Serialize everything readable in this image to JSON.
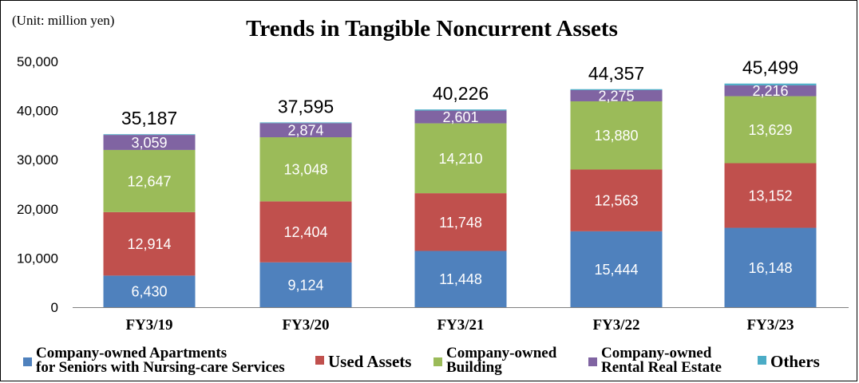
{
  "unit_label": "(Unit: million yen)",
  "chart_data": {
    "type": "bar",
    "stacked": true,
    "title": "Trends in Tangible Noncurrent Assets",
    "categories": [
      "FY3/19",
      "FY3/20",
      "FY3/21",
      "FY3/22",
      "FY3/23"
    ],
    "totals": [
      35187,
      37595,
      40226,
      44357,
      45499
    ],
    "total_labels": [
      "35,187",
      "37,595",
      "40,226",
      "44,357",
      "45,499"
    ],
    "ylim": [
      0,
      50000
    ],
    "yticks": [
      0,
      10000,
      20000,
      30000,
      40000,
      50000
    ],
    "ytick_labels": [
      "0",
      "10,000",
      "20,000",
      "30,000",
      "40,000",
      "50,000"
    ],
    "grid": false,
    "legend_position": "bottom",
    "series": [
      {
        "name": "Company-owned Apartments for Seniors with Nursing-care Services",
        "legend_lines": [
          "Company-owned Apartments",
          "for Seniors with Nursing-care Services"
        ],
        "color": "#4f81bd",
        "values": [
          6430,
          9124,
          11448,
          15444,
          16148
        ],
        "labels": [
          "6,430",
          "9,124",
          "11,448",
          "15,444",
          "16,148"
        ]
      },
      {
        "name": "Used Assets",
        "legend_lines": [
          "Used Assets"
        ],
        "color": "#c0504d",
        "values": [
          12914,
          12404,
          11748,
          12563,
          13152
        ],
        "labels": [
          "12,914",
          "12,404",
          "11,748",
          "12,563",
          "13,152"
        ]
      },
      {
        "name": "Company-owned Building",
        "legend_lines": [
          "Company-owned",
          "Building"
        ],
        "color": "#9bbb59",
        "values": [
          12647,
          13048,
          14210,
          13880,
          13629
        ],
        "labels": [
          "12,647",
          "13,048",
          "14,210",
          "13,880",
          "13,629"
        ]
      },
      {
        "name": "Company-owned Rental Real Estate",
        "legend_lines": [
          "Company-owned",
          "Rental Real Estate"
        ],
        "color": "#8064a2",
        "values": [
          3059,
          2874,
          2601,
          2275,
          2216
        ],
        "labels": [
          "3,059",
          "2,874",
          "2,601",
          "2,275",
          "2,216"
        ]
      },
      {
        "name": "Others",
        "legend_lines": [
          "Others"
        ],
        "color": "#4bacc6",
        "values": [
          137,
          145,
          219,
          195,
          354
        ],
        "labels": []
      }
    ]
  }
}
